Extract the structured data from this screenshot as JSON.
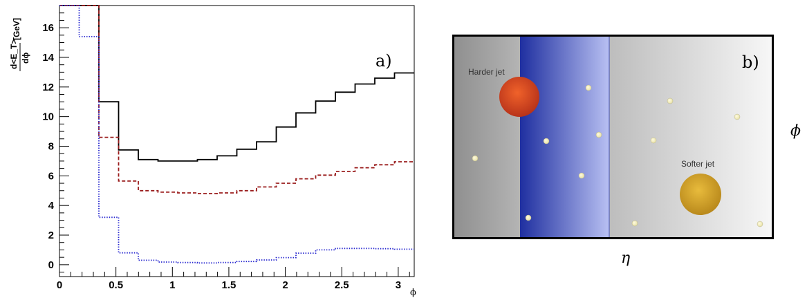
{
  "chart_data": [
    {
      "type": "line",
      "panel_label": "a)",
      "xlabel": "ϕ",
      "ylabel": "d<E_T>",
      "ylabel_denominator": "dϕ",
      "ylabel_unit": "[GeV]",
      "xlim": [
        0,
        3.14159
      ],
      "ylim": [
        -0.8,
        17.5
      ],
      "xticks": [
        "0",
        "0.5",
        "1",
        "1.5",
        "2",
        "2.5",
        "3"
      ],
      "yticks": [
        "0",
        "2",
        "4",
        "6",
        "8",
        "10",
        "12",
        "14",
        "16"
      ],
      "bin_edges": [
        0,
        0.1745,
        0.349,
        0.5236,
        0.6981,
        0.8727,
        1.0472,
        1.2217,
        1.3963,
        1.5708,
        1.7453,
        1.9199,
        2.0944,
        2.2689,
        2.4435,
        2.618,
        2.7925,
        2.967,
        3.1416
      ],
      "series": [
        {
          "color": "#000000",
          "dash": "solid",
          "values": [
            17.5,
            17.5,
            11.0,
            7.75,
            7.1,
            7.0,
            7.0,
            7.1,
            7.35,
            7.8,
            8.3,
            9.3,
            10.25,
            11.05,
            11.65,
            12.2,
            12.6,
            12.95
          ]
        },
        {
          "color": "#9a1c1c",
          "dash": "dashed",
          "values": [
            17.5,
            17.5,
            8.6,
            5.65,
            5.0,
            4.9,
            4.85,
            4.8,
            4.85,
            5.0,
            5.25,
            5.5,
            5.8,
            6.05,
            6.3,
            6.55,
            6.75,
            6.95
          ]
        },
        {
          "color": "#2b2bd0",
          "dash": "dotted",
          "values": [
            17.5,
            15.4,
            3.2,
            0.8,
            0.3,
            0.18,
            0.15,
            0.12,
            0.15,
            0.22,
            0.32,
            0.48,
            0.78,
            1.0,
            1.1,
            1.1,
            1.08,
            1.05
          ]
        }
      ]
    },
    {
      "type": "diagram",
      "panel_label": "b)",
      "xlabel": "η",
      "ylabel": "ϕ",
      "labels": {
        "harder_jet": "Harder jet",
        "softer_jet": "Softer jet"
      },
      "colors": {
        "band": "#2a3aa8",
        "harder_jet": "#d24a1e",
        "softer_jet": "#d2a02a",
        "particle": "#f6f2c0"
      }
    }
  ]
}
